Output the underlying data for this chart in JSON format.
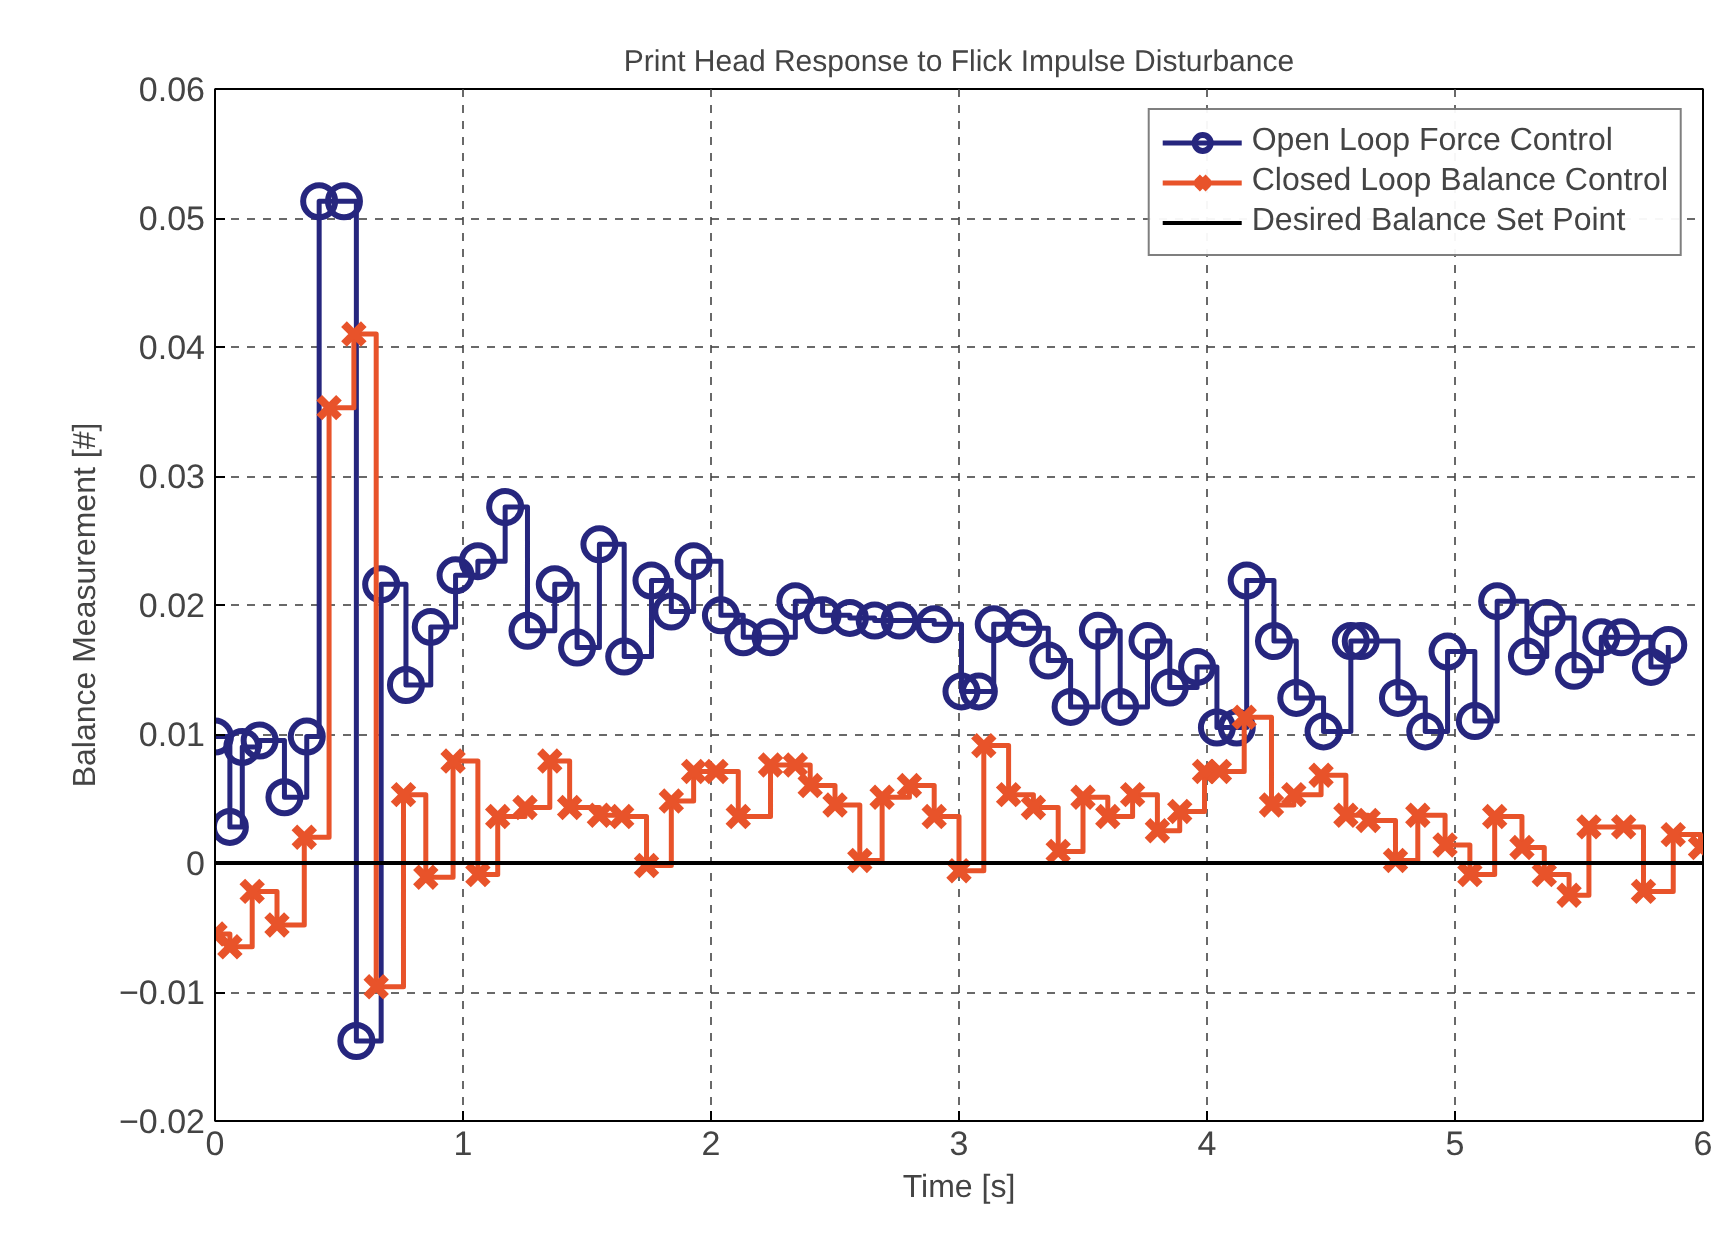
{
  "chart_data": {
    "type": "step",
    "title": "Print Head Response to Flick Impulse Disturbance",
    "xlabel": "Time [s]",
    "ylabel": "Balance Measurement [#]",
    "xlim": [
      0,
      6
    ],
    "ylim": [
      -0.02,
      0.06
    ],
    "xticks": [
      0,
      1,
      2,
      3,
      4,
      5,
      6
    ],
    "yticks": [
      {
        "value": -0.02,
        "label": "−0.02"
      },
      {
        "value": -0.01,
        "label": "−0.01"
      },
      0,
      0.01,
      0.02,
      0.03,
      0.04,
      0.05,
      0.06
    ],
    "grid": true,
    "legend": "top right",
    "series": [
      {
        "name": "Open Loop Force Control",
        "color": "#26267e",
        "marker": "circle",
        "x": [
          0,
          0.06,
          0.11,
          0.18,
          0.28,
          0.37,
          0.42,
          0.52,
          0.57,
          0.67,
          0.77,
          0.87,
          0.97,
          1.06,
          1.17,
          1.26,
          1.37,
          1.46,
          1.55,
          1.65,
          1.76,
          1.84,
          1.93,
          2.04,
          2.13,
          2.24,
          2.34,
          2.45,
          2.56,
          2.66,
          2.76,
          2.9,
          3.01,
          3.08,
          3.14,
          3.26,
          3.36,
          3.45,
          3.56,
          3.65,
          3.76,
          3.85,
          3.96,
          4.04,
          4.12,
          4.16,
          4.27,
          4.36,
          4.47,
          4.58,
          4.62,
          4.77,
          4.88,
          4.97,
          5.08,
          5.17,
          5.29,
          5.37,
          5.48,
          5.59,
          5.67,
          5.79,
          5.86
        ],
        "values": [
          0.0098,
          0.0028,
          0.009,
          0.0095,
          0.0051,
          0.0098,
          0.0513,
          0.0513,
          -0.0138,
          0.0216,
          0.0138,
          0.0183,
          0.0223,
          0.0234,
          0.0276,
          0.018,
          0.0216,
          0.0167,
          0.0247,
          0.016,
          0.0219,
          0.0195,
          0.0234,
          0.0192,
          0.0175,
          0.0175,
          0.0203,
          0.0192,
          0.019,
          0.0188,
          0.0188,
          0.0185,
          0.0133,
          0.0133,
          0.0185,
          0.0182,
          0.0157,
          0.0121,
          0.018,
          0.0121,
          0.0172,
          0.0136,
          0.0152,
          0.0105,
          0.0105,
          0.0219,
          0.0172,
          0.0128,
          0.0102,
          0.0172,
          0.0172,
          0.0128,
          0.0102,
          0.0164,
          0.011,
          0.0203,
          0.016,
          0.019,
          0.0149,
          0.0175,
          0.0175,
          0.0152,
          0.0169
        ]
      },
      {
        "name": "Closed Loop Balance Control",
        "color": "#e8532a",
        "marker": "cross",
        "x": [
          0,
          0.06,
          0.15,
          0.25,
          0.36,
          0.46,
          0.56,
          0.65,
          0.76,
          0.85,
          0.96,
          1.06,
          1.14,
          1.25,
          1.35,
          1.43,
          1.55,
          1.64,
          1.74,
          1.84,
          1.93,
          2.02,
          2.11,
          2.24,
          2.34,
          2.4,
          2.5,
          2.6,
          2.69,
          2.8,
          2.9,
          3.0,
          3.1,
          3.2,
          3.3,
          3.4,
          3.5,
          3.6,
          3.7,
          3.8,
          3.89,
          3.99,
          4.05,
          4.15,
          4.26,
          4.35,
          4.46,
          4.56,
          4.65,
          4.76,
          4.85,
          4.96,
          5.06,
          5.16,
          5.27,
          5.36,
          5.46,
          5.54,
          5.68,
          5.76,
          5.88,
          5.99
        ],
        "values": [
          -0.0055,
          -0.0065,
          -0.0022,
          -0.0048,
          0.002,
          0.0353,
          0.041,
          -0.0096,
          0.0053,
          -0.0011,
          0.0079,
          -0.0009,
          0.0036,
          0.0043,
          0.0079,
          0.0043,
          0.0037,
          0.0036,
          -0.0002,
          0.0048,
          0.0071,
          0.0071,
          0.0036,
          0.0076,
          0.0076,
          0.006,
          0.0045,
          0.0002,
          0.0051,
          0.006,
          0.0036,
          -0.0006,
          0.0091,
          0.0053,
          0.0043,
          0.0009,
          0.0051,
          0.0036,
          0.0053,
          0.0025,
          0.004,
          0.0071,
          0.0071,
          0.0113,
          0.0045,
          0.0053,
          0.0068,
          0.0037,
          0.0033,
          0.0002,
          0.0037,
          0.0014,
          -0.0009,
          0.0036,
          0.0012,
          -0.0009,
          -0.0025,
          0.0028,
          0.0028,
          -0.0022,
          0.0022,
          0.0012
        ]
      },
      {
        "name": "Desired Balance Set Point",
        "color": "#000000",
        "type": "line",
        "marker": "none",
        "x": [
          0,
          6
        ],
        "values": [
          0,
          0
        ]
      }
    ]
  }
}
